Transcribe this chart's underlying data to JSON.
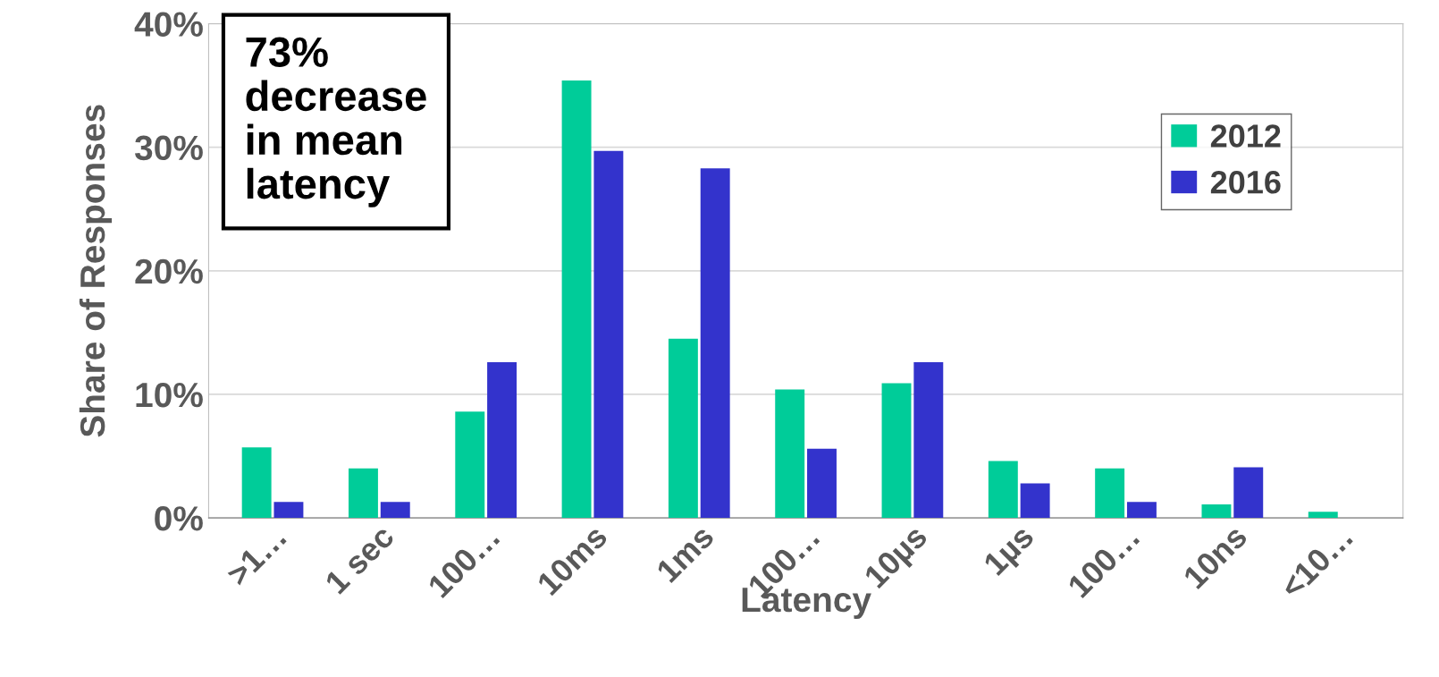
{
  "chart_data": {
    "type": "bar",
    "xlabel": "Latency",
    "ylabel": "Share of Responses",
    "categories": [
      ">1…",
      "1 sec",
      "100…",
      "10ms",
      "1ms",
      "100…",
      "10µs",
      "1µs",
      "100…",
      "10ns",
      "<10…"
    ],
    "series": [
      {
        "name": "2012",
        "color": "#00cc99",
        "values": [
          5.7,
          4.0,
          8.6,
          35.4,
          14.5,
          10.4,
          10.9,
          4.6,
          4.0,
          1.1,
          0.5
        ]
      },
      {
        "name": "2016",
        "color": "#3333cc",
        "values": [
          1.3,
          1.3,
          12.6,
          29.7,
          28.3,
          5.6,
          12.6,
          2.8,
          1.3,
          4.1,
          0
        ]
      }
    ],
    "ylim": [
      0,
      40
    ],
    "yticks": [
      {
        "value": 0,
        "label": "0%"
      },
      {
        "value": 10,
        "label": "10%"
      },
      {
        "value": 20,
        "label": "20%"
      },
      {
        "value": 30,
        "label": "30%"
      },
      {
        "value": 40,
        "label": "40%"
      }
    ],
    "grid": "y",
    "legend": "top right",
    "annotations": [
      "73%\ndecrease\nin mean\nlatency"
    ]
  }
}
